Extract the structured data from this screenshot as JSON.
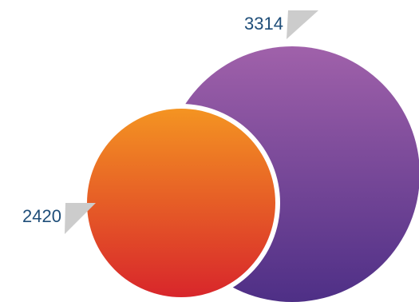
{
  "chart_data": {
    "type": "bubble",
    "items": [
      {
        "value": 3314,
        "label": "3314",
        "color_top": "#a061aa",
        "color_bottom": "#4e2f86"
      },
      {
        "value": 2420,
        "label": "2420",
        "color_top": "#f49422",
        "color_bottom": "#d8262b"
      }
    ],
    "pointer_color": "#cccccc",
    "label_color": "#1f4e79",
    "separator_color": "#ffffff"
  }
}
